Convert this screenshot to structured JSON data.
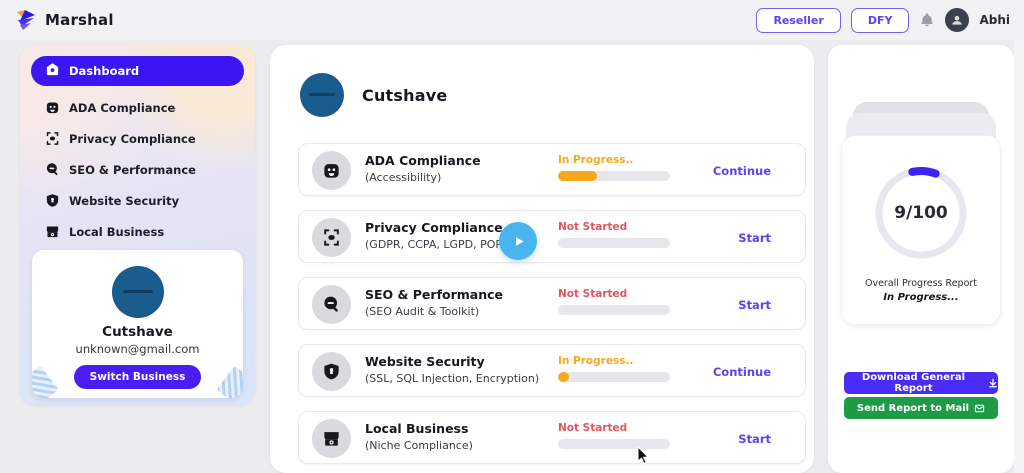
{
  "colors": {
    "accent": "#3b16f2",
    "link": "#5b43f5",
    "in_progress": "#f7a81c",
    "not_started": "#e25560",
    "download_button": "#4a2df4",
    "send_button": "#1e9b45",
    "avatar_blue": "#1b5c8e",
    "play_blue": "#4ab4f0"
  },
  "topbar": {
    "brand": "Marshal",
    "reseller_label": "Reseller",
    "dfy_label": "DFY",
    "user_name": "Abhi"
  },
  "sidebar": {
    "items": [
      {
        "label": "Dashboard",
        "icon": "home-icon",
        "active": true
      },
      {
        "label": "ADA Compliance",
        "icon": "robot-face-icon",
        "active": false
      },
      {
        "label": "Privacy Compliance",
        "icon": "face-scan-icon",
        "active": false
      },
      {
        "label": "SEO & Performance",
        "icon": "magnifier-icon",
        "active": false
      },
      {
        "label": "Website Security",
        "icon": "shield-icon",
        "active": false
      },
      {
        "label": "Local Business",
        "icon": "storefront-icon",
        "active": false
      }
    ],
    "business_card": {
      "name": "Cutshave",
      "email": "unknown@gmail.com",
      "switch_label": "Switch Business"
    }
  },
  "main": {
    "title": "Cutshave",
    "rows": [
      {
        "title": "ADA Compliance",
        "subtitle": "(Accessibility)",
        "icon": "robot-face-icon",
        "status": "In Progress..",
        "status_type": "in_progress",
        "progress": 35,
        "action": "Continue"
      },
      {
        "title": "Privacy Compliance",
        "subtitle": "(GDPR, CCPA, LGPD, POPI)",
        "icon": "face-scan-icon",
        "status": "Not Started",
        "status_type": "not_started",
        "progress": 0,
        "action": "Start"
      },
      {
        "title": "SEO & Performance",
        "subtitle": "(SEO Audit & Toolkit)",
        "icon": "magnifier-icon",
        "status": "Not Started",
        "status_type": "not_started",
        "progress": 0,
        "action": "Start"
      },
      {
        "title": "Website Security",
        "subtitle": "(SSL, SQL Injection, Encryption)",
        "icon": "shield-icon",
        "status": "In Progress..",
        "status_type": "in_progress",
        "progress": 10,
        "action": "Continue"
      },
      {
        "title": "Local Business",
        "subtitle": "(Niche Compliance)",
        "icon": "storefront-icon",
        "status": "Not Started",
        "status_type": "not_started",
        "progress": 0,
        "action": "Start"
      }
    ],
    "play_icon": "play-icon"
  },
  "report_panel": {
    "score": "9/100",
    "score_value": 9,
    "score_max": 100,
    "caption_line1": "Overall Progress Report",
    "caption_line2": "In Progress...",
    "download_label": "Download General Report",
    "download_icon": "download-icon",
    "send_label": "Send Report to Mail",
    "send_icon": "mail-icon"
  }
}
